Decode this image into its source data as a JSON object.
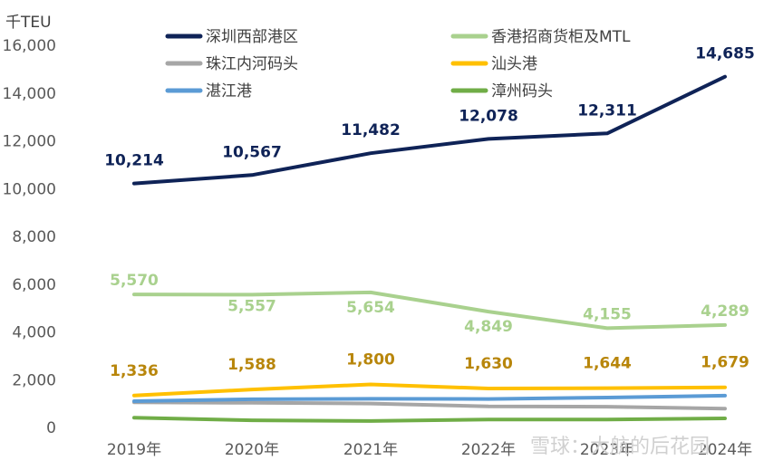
{
  "chart_data": {
    "type": "line",
    "y_unit_label": "千TEU",
    "categories": [
      "2019年",
      "2020年",
      "2021年",
      "2022年",
      "2023年",
      "2024年"
    ],
    "ylim": [
      0,
      16000
    ],
    "yticks": [
      "0",
      "2,000",
      "4,000",
      "6,000",
      "8,000",
      "10,000",
      "12,000",
      "14,000",
      "16,000"
    ],
    "ytick_values": [
      0,
      2000,
      4000,
      6000,
      8000,
      10000,
      12000,
      14000,
      16000
    ],
    "grid": false,
    "legend_position": "top",
    "series": [
      {
        "name": "深圳西部港区",
        "color": "#0f2357",
        "values": [
          10214,
          10567,
          11482,
          12078,
          12311,
          14685
        ],
        "labels": [
          "10,214",
          "10,567",
          "11,482",
          "12,078",
          "12,311",
          "14,685"
        ]
      },
      {
        "name": "香港招商货柜及MTL",
        "color": "#a9d18e",
        "values": [
          5570,
          5557,
          5654,
          4849,
          4155,
          4289
        ],
        "labels": [
          "5,570",
          "5,557",
          "5,654",
          "4,849",
          "4,155",
          "4,289"
        ]
      },
      {
        "name": "珠江内河码头",
        "color": "#a6a6a6",
        "values": [
          1050,
          1030,
          1000,
          880,
          870,
          790
        ],
        "labels": []
      },
      {
        "name": "汕头港",
        "color": "#ffc000",
        "values": [
          1336,
          1588,
          1800,
          1630,
          1644,
          1679
        ],
        "labels": [
          "1,336",
          "1,588",
          "1,800",
          "1,630",
          "1,644",
          "1,679"
        ],
        "label_color": "#b8860b"
      },
      {
        "name": "湛江港",
        "color": "#5b9bd5",
        "values": [
          1100,
          1180,
          1200,
          1190,
          1250,
          1330
        ],
        "labels": []
      },
      {
        "name": "漳州码头",
        "color": "#70ad47",
        "values": [
          410,
          300,
          270,
          330,
          330,
          380
        ],
        "labels": []
      }
    ]
  },
  "watermark": "雪球：大航的后花园"
}
